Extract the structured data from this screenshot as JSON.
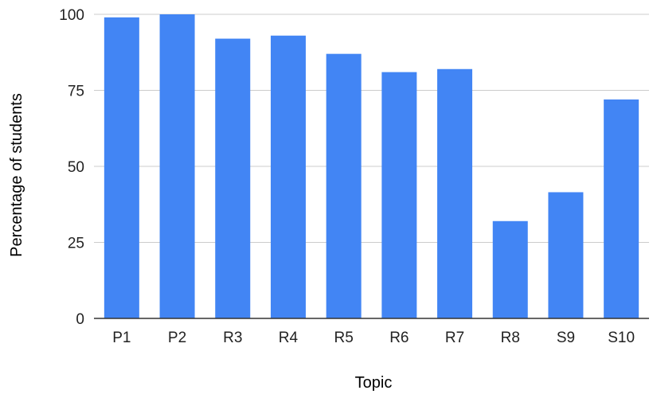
{
  "chart_data": {
    "type": "bar",
    "title": "",
    "xlabel": "Topic",
    "ylabel": "Percentage of students",
    "categories": [
      "P1",
      "P2",
      "R3",
      "R4",
      "R5",
      "R6",
      "R7",
      "R8",
      "S9",
      "S10"
    ],
    "values": [
      99,
      100,
      92,
      93,
      87,
      81,
      82,
      32,
      41.5,
      72
    ],
    "ylim": [
      0,
      100
    ],
    "yticks": [
      "0",
      "25",
      "50",
      "75",
      "100"
    ],
    "grid": true,
    "legend": "none",
    "colors": {
      "bar": "#4285f4",
      "grid": "#cccccc",
      "axis": "#333333",
      "text": "#222222"
    }
  }
}
